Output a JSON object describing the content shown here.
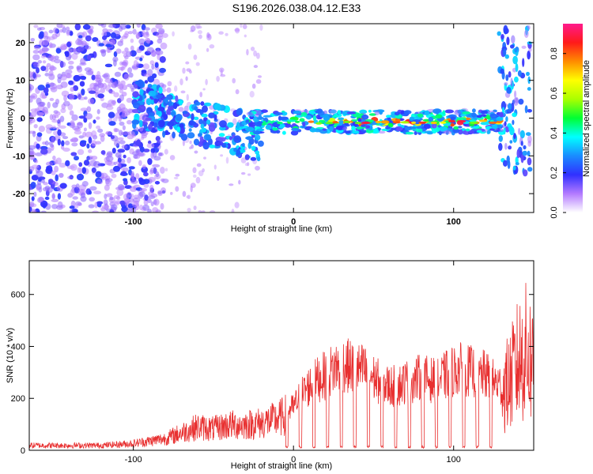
{
  "title": "S196.2026.038.04.12.E33",
  "chart_data": [
    {
      "type": "heatmap",
      "name": "spectrogram",
      "xlabel": "Height of straight line (km)",
      "ylabel": "Frequency (Hz)",
      "xlim": [
        -165,
        150
      ],
      "ylim": [
        -25,
        25
      ],
      "xticks": [
        -100,
        0,
        100
      ],
      "yticks": [
        20,
        10,
        0,
        -10,
        -20
      ],
      "band_center_hz": -1,
      "colorbar": {
        "label": "Normalized spectral amplitude",
        "range": [
          0,
          0.95
        ],
        "ticks": [
          0.0,
          0.2,
          0.4,
          0.6,
          0.8
        ],
        "tick_labels": [
          "0.0",
          "0.2",
          "0.4",
          "0.6",
          "0.8"
        ]
      }
    },
    {
      "type": "line",
      "name": "snr",
      "xlabel": "Height of straight line (km)",
      "ylabel": "SNR (10 * v/v)",
      "xlim": [
        -165,
        150
      ],
      "ylim": [
        0,
        730
      ],
      "xticks": [
        -100,
        0,
        100
      ],
      "yticks": [
        0,
        200,
        400,
        600
      ],
      "color": "#e83030",
      "envelope_x": [
        -165,
        -120,
        -100,
        -80,
        -70,
        -60,
        -50,
        -40,
        -30,
        -20,
        -10,
        0,
        5,
        10,
        15,
        20,
        25,
        30,
        35,
        40,
        45,
        50,
        55,
        60,
        65,
        70,
        75,
        80,
        85,
        90,
        95,
        100,
        105,
        110,
        115,
        120,
        125,
        130,
        135,
        140,
        145,
        150
      ],
      "envelope_y": [
        25,
        25,
        35,
        60,
        90,
        120,
        110,
        130,
        130,
        140,
        160,
        200,
        260,
        300,
        330,
        350,
        380,
        400,
        390,
        380,
        370,
        340,
        310,
        300,
        300,
        320,
        330,
        340,
        330,
        320,
        350,
        370,
        380,
        370,
        360,
        350,
        320,
        300,
        350,
        450,
        500,
        450
      ]
    }
  ]
}
